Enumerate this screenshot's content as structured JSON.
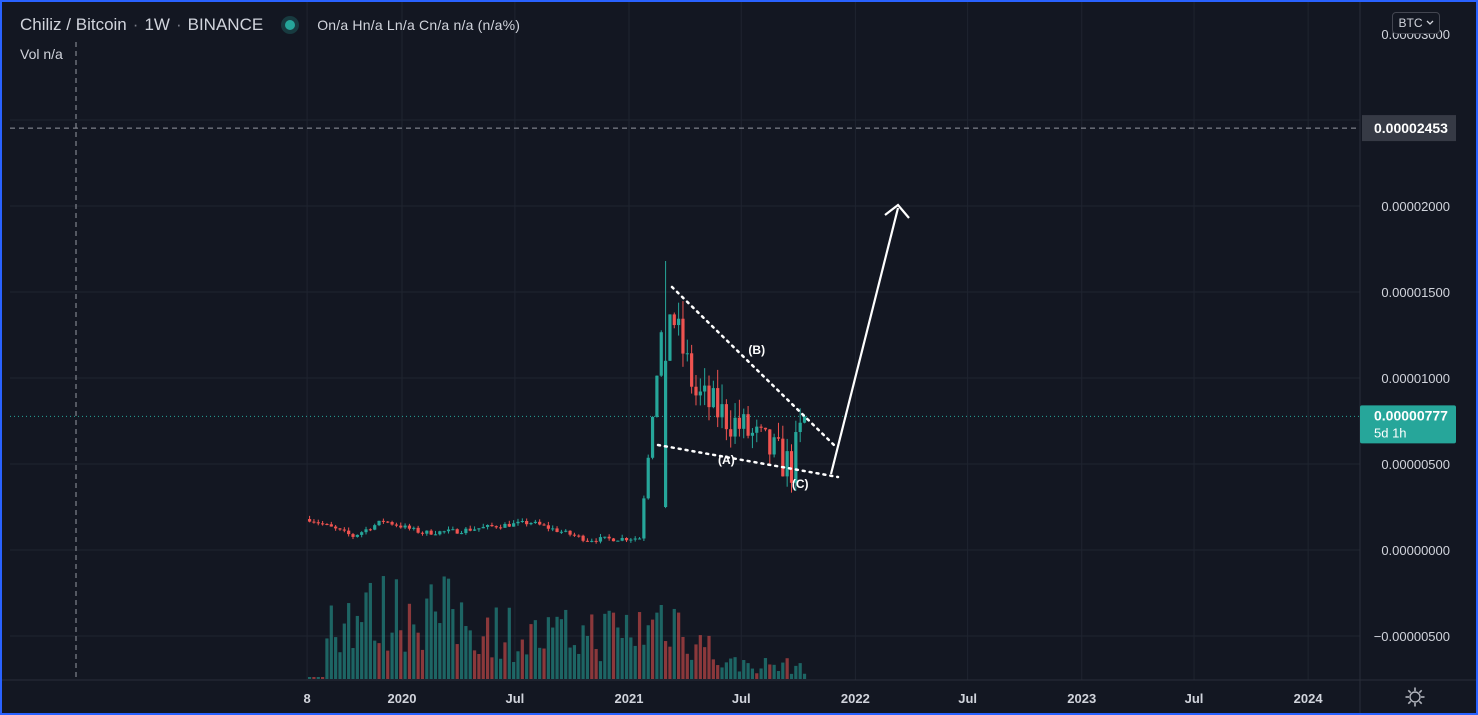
{
  "legend": {
    "symbol": "Chiliz / Bitcoin",
    "interval": "1W",
    "exchange": "BINANCE",
    "ohlc": "On/a Hn/a Ln/a Cn/a n/a (n/a%)",
    "volume": "Vol  n/a",
    "separator": "·"
  },
  "currency_button": "BTC",
  "price_badges": {
    "crosshair_price": "0.00002453",
    "last_price": "0.00000777",
    "countdown": "5d 1h"
  },
  "annotations": [
    {
      "label": "(A)",
      "x": "2021-06-07",
      "y": 5e-06
    },
    {
      "label": "(B)",
      "x": "2021-07-26",
      "y": 1.14e-05
    },
    {
      "label": "(C)",
      "x": "2021-10-04",
      "y": 3.6e-06
    }
  ],
  "colors": {
    "background": "#131722",
    "up": "#26a69a",
    "down": "#ef5350",
    "grid": "#1f2430",
    "last_price_line": "#26a69a",
    "frame": "#2962ff",
    "drawing": "#ffffff"
  },
  "chart_data": {
    "type": "candlestick",
    "title": "Chiliz / Bitcoin · 1W · BINANCE",
    "y_ticks": [
      "0.00000000",
      "0.00000500",
      "0.00001000",
      "0.00001500",
      "0.00002000",
      "−0.00000500"
    ],
    "x_ticks": [
      "8",
      "2020",
      "Jul",
      "2021",
      "Jul",
      "2022",
      "Jul",
      "2023",
      "Jul",
      "2024"
    ],
    "ylim": [
      -7.5e-06,
      3.05e-05
    ],
    "grid": true,
    "last_price": 7.77e-06,
    "crosshair_price": 2.453e-05,
    "series": [
      {
        "name": "price_segments",
        "description": "weekly candles",
        "points": [
          {
            "x": "2019-08-05",
            "y": 1.8e-06
          },
          {
            "x": "2019-10-14",
            "y": 8e-07
          },
          {
            "x": "2019-12-02",
            "y": 1.7e-06
          },
          {
            "x": "2020-02-03",
            "y": 1e-06
          },
          {
            "x": "2020-03-30",
            "y": 1.1e-06
          },
          {
            "x": "2020-06-01",
            "y": 1.4e-06
          },
          {
            "x": "2020-07-27",
            "y": 1.6e-06
          },
          {
            "x": "2020-10-26",
            "y": 6e-07
          },
          {
            "x": "2021-01-18",
            "y": 7e-07
          },
          {
            "x": "2021-03-01",
            "y": 1.5e-05
          },
          {
            "x": "2021-04-19",
            "y": 9e-06
          },
          {
            "x": "2021-07-05",
            "y": 7e-06
          },
          {
            "x": "2021-09-20",
            "y": 4.8e-06
          },
          {
            "x": "2021-10-11",
            "y": 7.7e-06
          }
        ]
      },
      {
        "name": "volume",
        "description": "weekly volume bars (relative)",
        "points": [
          {
            "x": "2019-09-02",
            "y": 0.75
          },
          {
            "x": "2019-11-11",
            "y": 0.75
          },
          {
            "x": "2020-01-27",
            "y": 0.85
          },
          {
            "x": "2020-05-18",
            "y": 0.62
          },
          {
            "x": "2020-08-03",
            "y": 0.48
          },
          {
            "x": "2021-02-01",
            "y": 0.6
          },
          {
            "x": "2021-03-01",
            "y": 0.8
          },
          {
            "x": "2021-06-07",
            "y": 0.18
          },
          {
            "x": "2021-10-11",
            "y": 0.15
          }
        ]
      }
    ]
  }
}
